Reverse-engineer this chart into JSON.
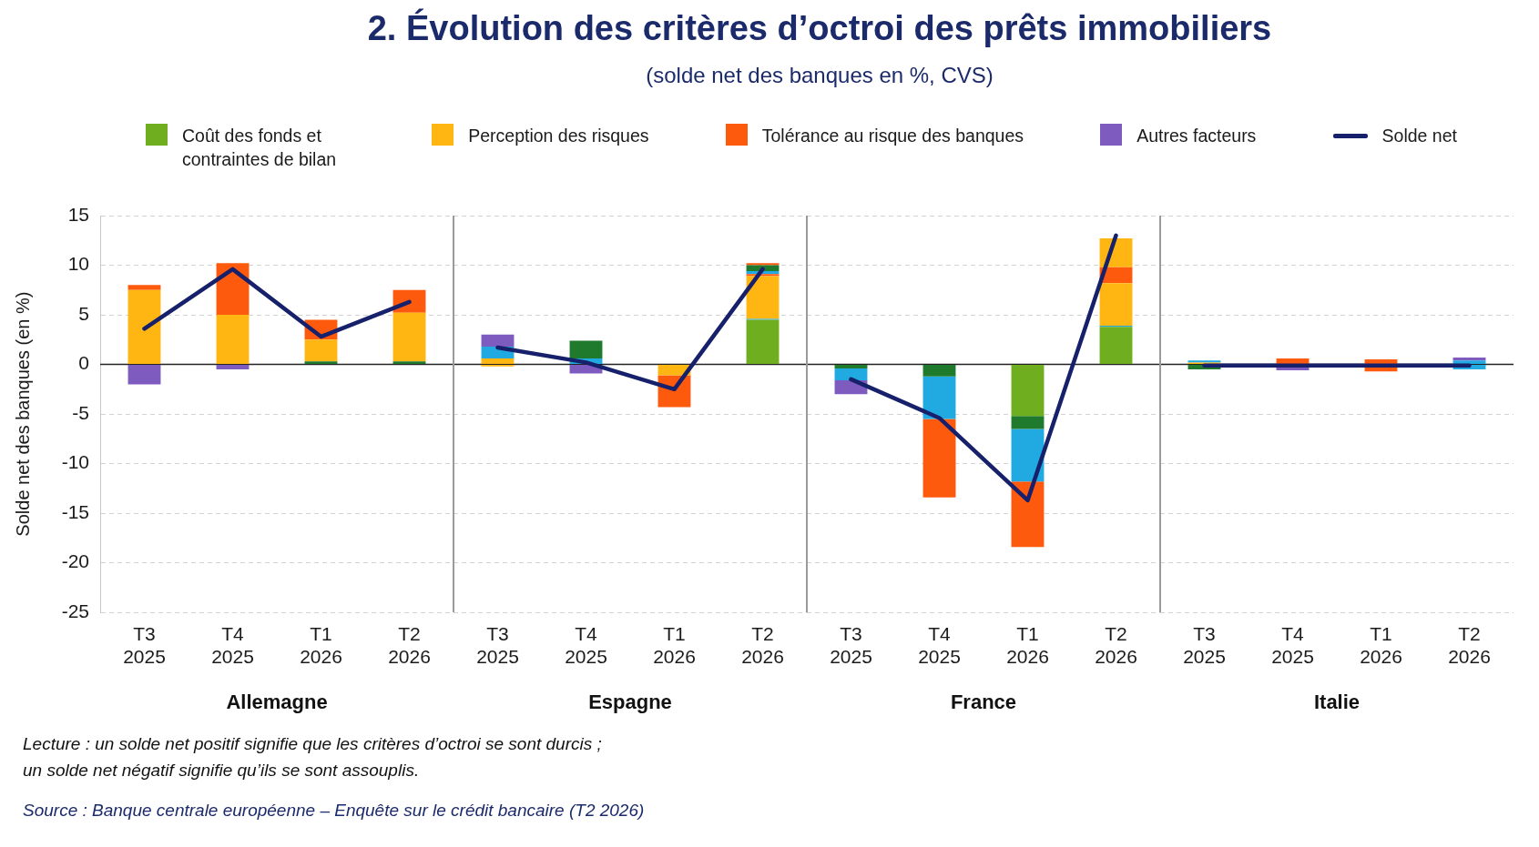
{
  "chart_data": [
    {
      "type": "other",
      "title": "2. Évolution des critères d’octroi des prêts immobiliers",
      "subtitle": "(solde net des banques en %, CVS)"
    },
    {
      "type": "bar",
      "ylabel": "Solde net des banques (en %)",
      "xlabel": "Allemagne",
      "legend": "top",
      "stacked": true,
      "grid": "y",
      "categories": [
        "T3 2025",
        "T4 2025",
        "T1 2026",
        "T2 2026"
      ],
      "ylim": [
        -25,
        15
      ],
      "yticks": [
        -25,
        -20,
        -15,
        -10,
        -5,
        0,
        5,
        10,
        15
      ],
      "ref_lines": [
        {
          "axis": "y",
          "value": 0,
          "color": "#222222"
        }
      ],
      "series": [
        {
          "name": "Coût des fonds et contraintes de bilan",
          "color": "#6fae1e",
          "values": [
            null,
            null,
            null,
            null
          ]
        },
        {
          "color": "#1f7a2e",
          "values": [
            null,
            null,
            0.3,
            0.3
          ]
        },
        {
          "color": "#21a9e1",
          "values": [
            null,
            null,
            null,
            null
          ]
        },
        {
          "name": "Perception des risques",
          "color": "#ffb612",
          "values": [
            7.5,
            5.0,
            2.2,
            4.9
          ]
        },
        {
          "name": "Tolérance au risque des banques",
          "color": "#fe5a0e",
          "values": [
            0.5,
            5.2,
            2.0,
            2.3
          ]
        },
        {
          "color": "#21a9e1",
          "values": [
            null,
            null,
            null,
            null
          ]
        },
        {
          "color": "#1f7a2e",
          "values": [
            null,
            null,
            null,
            null
          ]
        },
        {
          "color": "#fe5a0e",
          "values": [
            null,
            null,
            null,
            null
          ]
        },
        {
          "color": "#ffb612",
          "values": [
            null,
            null,
            null,
            null
          ]
        },
        {
          "name": "Autres facteurs",
          "color": "#7e5bbf",
          "values": [
            -2.0,
            -0.5,
            null,
            null
          ]
        },
        {
          "type": "line",
          "name": "Solde net",
          "color": "#16206b",
          "values": [
            3.6,
            9.6,
            2.8,
            6.3
          ]
        }
      ],
      "annotations": [
        "Lecture : un solde net positif signifie que les critères d’octroi se sont durcis ;\nun solde net négatif signifie qu’ils se sont assouplis.",
        "Source : Banque centrale européenne – Enquête sur le crédit bancaire (T2 2026)"
      ]
    },
    {
      "type": "bar",
      "xlabel": "Espagne",
      "stacked": true,
      "grid": "y",
      "tick_labels": "x",
      "categories": [
        "T3 2025",
        "T4 2025",
        "T1 2026",
        "T2 2026"
      ],
      "ylim": [
        -25,
        15
      ],
      "yticks": [
        -25,
        -20,
        -15,
        -10,
        -5,
        0,
        5,
        10,
        15
      ],
      "ref_lines": [
        {
          "axis": "y",
          "value": 0,
          "color": "#222222"
        }
      ],
      "series": [
        {
          "color": "#6fae1e",
          "values": [
            null,
            null,
            null,
            4.5
          ]
        },
        {
          "color": "#1f7a2e",
          "values": [
            null,
            null,
            null,
            null
          ]
        },
        {
          "color": "#21a9e1",
          "values": [
            null,
            0.6,
            null,
            0.1
          ]
        },
        {
          "color": "#ffb612",
          "values": [
            0.6,
            null,
            -1.1,
            4.3
          ]
        },
        {
          "color": "#fe5a0e",
          "values": [
            null,
            null,
            -3.2,
            0.2
          ]
        },
        {
          "color": "#21a9e1",
          "values": [
            1.2,
            null,
            null,
            0.3
          ]
        },
        {
          "color": "#1f7a2e",
          "values": [
            null,
            1.8,
            null,
            0.6
          ]
        },
        {
          "color": "#fe5a0e",
          "values": [
            null,
            null,
            null,
            0.2
          ]
        },
        {
          "color": "#ffb612",
          "values": [
            -0.2,
            null,
            null,
            null
          ]
        },
        {
          "color": "#7e5bbf",
          "values": [
            1.2,
            -0.9,
            null,
            null
          ]
        },
        {
          "type": "line",
          "color": "#16206b",
          "values": [
            1.7,
            0.2,
            -2.5,
            9.6
          ]
        }
      ]
    },
    {
      "type": "bar",
      "xlabel": "France",
      "stacked": true,
      "grid": "y",
      "tick_labels": "x",
      "categories": [
        "T3 2025",
        "T4 2025",
        "T1 2026",
        "T2 2026"
      ],
      "ylim": [
        -25,
        15
      ],
      "yticks": [
        -25,
        -20,
        -15,
        -10,
        -5,
        0,
        5,
        10,
        15
      ],
      "ref_lines": [
        {
          "axis": "y",
          "value": 0,
          "color": "#222222"
        }
      ],
      "series": [
        {
          "color": "#6fae1e",
          "values": [
            null,
            null,
            -5.2,
            3.8
          ]
        },
        {
          "color": "#1f7a2e",
          "values": [
            -0.4,
            -1.2,
            -1.3,
            null
          ]
        },
        {
          "color": "#21a9e1",
          "values": [
            -1.2,
            -4.3,
            -5.3,
            0.1
          ]
        },
        {
          "color": "#ffb612",
          "values": [
            null,
            null,
            null,
            4.3
          ]
        },
        {
          "color": "#fe5a0e",
          "values": [
            null,
            -7.9,
            -6.6,
            1.6
          ]
        },
        {
          "color": "#21a9e1",
          "values": [
            null,
            null,
            null,
            null
          ]
        },
        {
          "color": "#1f7a2e",
          "values": [
            null,
            null,
            null,
            null
          ]
        },
        {
          "color": "#fe5a0e",
          "values": [
            null,
            null,
            null,
            null
          ]
        },
        {
          "color": "#ffb612",
          "values": [
            null,
            null,
            null,
            2.9
          ]
        },
        {
          "color": "#7e5bbf",
          "values": [
            -1.4,
            null,
            null,
            null
          ]
        },
        {
          "type": "line",
          "color": "#16206b",
          "values": [
            -1.5,
            -5.4,
            -13.7,
            13.0
          ]
        }
      ]
    },
    {
      "type": "bar",
      "xlabel": "Italie",
      "stacked": true,
      "grid": "y",
      "tick_labels": "x",
      "categories": [
        "T3 2025",
        "T4 2025",
        "T1 2026",
        "T2 2026"
      ],
      "ylim": [
        -25,
        15
      ],
      "yticks": [
        -25,
        -20,
        -15,
        -10,
        -5,
        0,
        5,
        10,
        15
      ],
      "ref_lines": [
        {
          "axis": "y",
          "value": 0,
          "color": "#222222"
        }
      ],
      "series": [
        {
          "color": "#6fae1e",
          "values": [
            null,
            null,
            null,
            null
          ]
        },
        {
          "color": "#1f7a2e",
          "values": [
            -0.5,
            null,
            null,
            null
          ]
        },
        {
          "color": "#21a9e1",
          "values": [
            null,
            null,
            null,
            0.4
          ]
        },
        {
          "color": "#ffb612",
          "values": [
            0.2,
            null,
            null,
            null
          ]
        },
        {
          "color": "#fe5a0e",
          "values": [
            null,
            0.6,
            -0.7,
            null
          ]
        },
        {
          "color": "#21a9e1",
          "values": [
            0.2,
            null,
            null,
            -0.5
          ]
        },
        {
          "color": "#1f7a2e",
          "values": [
            null,
            null,
            null,
            null
          ]
        },
        {
          "color": "#fe5a0e",
          "values": [
            null,
            null,
            0.5,
            null
          ]
        },
        {
          "color": "#ffb612",
          "values": [
            null,
            null,
            null,
            null
          ]
        },
        {
          "color": "#7e5bbf",
          "values": [
            null,
            -0.6,
            null,
            0.3
          ]
        },
        {
          "type": "line",
          "color": "#16206b",
          "values": [
            -0.1,
            -0.1,
            -0.1,
            -0.1
          ]
        }
      ]
    }
  ]
}
